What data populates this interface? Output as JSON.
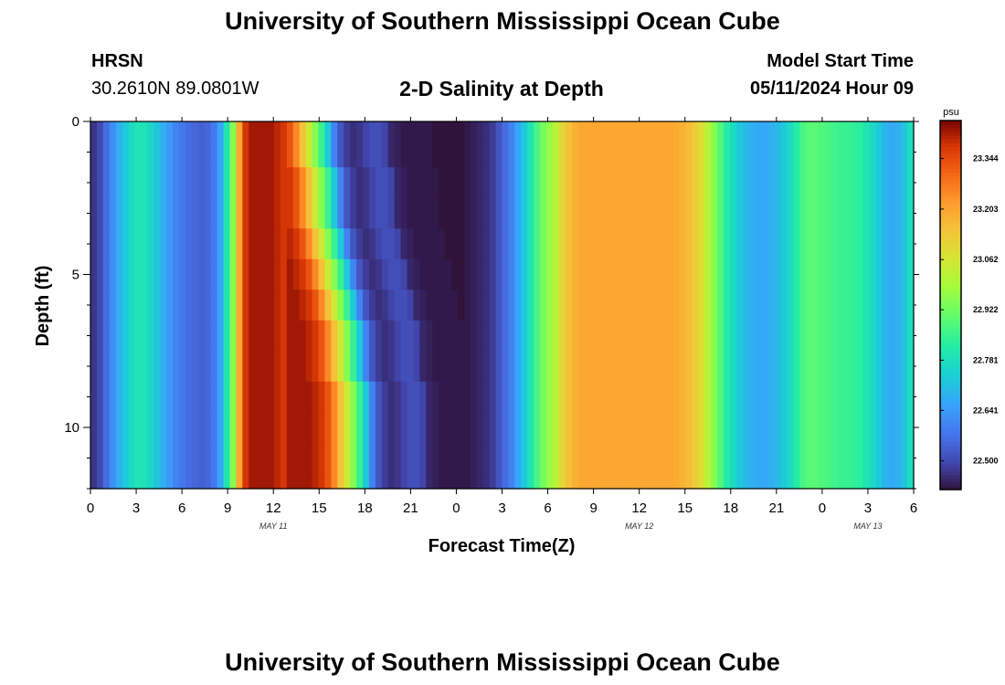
{
  "header": {
    "title": "University of Southern Mississippi Ocean Cube",
    "station_code": "HRSN",
    "coordinates": "30.2610N  89.0801W",
    "plot_title": "2-D Salinity at Depth",
    "model_start_label": "Model Start Time",
    "model_start_value": "05/11/2024 Hour 09"
  },
  "footer": {
    "title": "University of Southern Mississippi Ocean Cube"
  },
  "chart_data": {
    "type": "heatmap",
    "title": "2-D Salinity at Depth",
    "xlabel": "Forecast Time(Z)",
    "ylabel": "Depth (ft)",
    "x_unit": "hours since 2024-05-11 00Z",
    "x_range": [
      0,
      54
    ],
    "x_ticks": [
      0,
      3,
      6,
      9,
      12,
      15,
      18,
      21,
      24,
      27,
      30,
      33,
      36,
      39,
      42,
      45,
      48,
      51,
      54
    ],
    "x_tick_labels": [
      "0",
      "3",
      "6",
      "9",
      "12",
      "15",
      "18",
      "21",
      "0",
      "3",
      "6",
      "9",
      "12",
      "15",
      "18",
      "21",
      "0",
      "3",
      "6"
    ],
    "date_labels": [
      {
        "x": 12,
        "text": "MAY 11"
      },
      {
        "x": 36,
        "text": "MAY 12"
      },
      {
        "x": 51,
        "text": "MAY 13"
      }
    ],
    "y_range": [
      0,
      12
    ],
    "y_ticks": [
      0,
      5,
      10
    ],
    "y_reversed": true,
    "colorbar": {
      "unit": "psu",
      "range": [
        22.42,
        23.45
      ],
      "ticks": [
        22.5,
        22.641,
        22.781,
        22.922,
        23.062,
        23.203,
        23.344
      ],
      "tick_labels": [
        "22.500",
        "22.641",
        "22.781",
        "22.922",
        "23.062",
        "23.203",
        "23.344"
      ]
    },
    "surface_profile": [
      22.47,
      22.5,
      22.56,
      22.62,
      22.68,
      22.73,
      22.77,
      22.8,
      22.79,
      22.76,
      22.72,
      22.68,
      22.64,
      22.6,
      22.58,
      22.56,
      22.55,
      22.54,
      22.55,
      22.58,
      22.66,
      22.8,
      22.95,
      23.2,
      23.38,
      23.42,
      23.42,
      23.42,
      23.42,
      23.4,
      23.38,
      23.33,
      23.25,
      23.15,
      23.05,
      22.95,
      22.85,
      22.73,
      22.6,
      22.52,
      22.48,
      22.46,
      22.47,
      22.49,
      22.51,
      22.51,
      22.49,
      22.45,
      22.44,
      22.43,
      22.43,
      22.43,
      22.43,
      22.43,
      22.42,
      22.42,
      22.42,
      22.42,
      22.42,
      22.43,
      22.44,
      22.45,
      22.46,
      22.48,
      22.52,
      22.56,
      22.6,
      22.66,
      22.73,
      22.8,
      22.87,
      22.93,
      22.97,
      23.02,
      23.1,
      23.15,
      23.18,
      23.2,
      23.2,
      23.2,
      23.2,
      23.2,
      23.2,
      23.2,
      23.2,
      23.2,
      23.2,
      23.2,
      23.2,
      23.2,
      23.2,
      23.2,
      23.19,
      23.18,
      23.16,
      23.13,
      23.08,
      23.02,
      22.95,
      22.88,
      22.82,
      22.77,
      22.73,
      22.7,
      22.68,
      22.67,
      22.67,
      22.68,
      22.7,
      22.73,
      22.77,
      22.82,
      22.87,
      22.89,
      22.89,
      22.88,
      22.87,
      22.86,
      22.85,
      22.85,
      22.84,
      22.83,
      22.8,
      22.77,
      22.73,
      22.69,
      22.67,
      22.68,
      22.72,
      22.78
    ],
    "front": {
      "depths": [
        0,
        1,
        2,
        3,
        4,
        5,
        6,
        7,
        8,
        9,
        10,
        11,
        12
      ],
      "hour": [
        19.4,
        19.5,
        19.7,
        19.9,
        20.2,
        20.6,
        21.0,
        21.4,
        21.6,
        21.8,
        21.9,
        22.0,
        22.1
      ]
    }
  }
}
